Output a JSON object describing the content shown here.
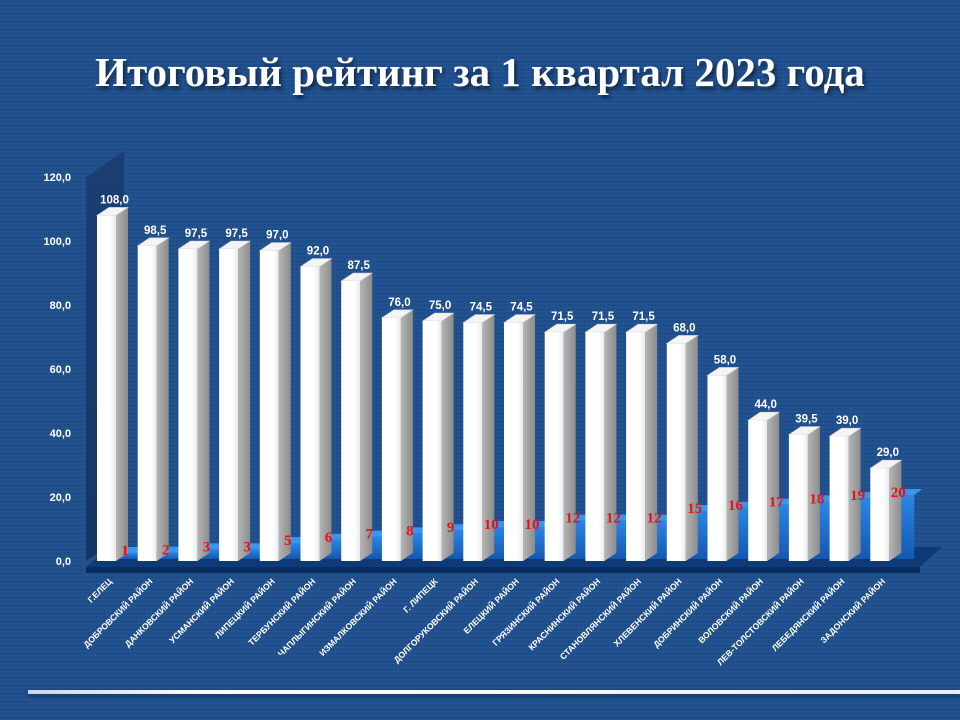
{
  "title": "Итоговый рейтинг за 1 квартал 2023 года",
  "colors": {
    "background": "#1f4f8d",
    "bar_front": "#ffffff",
    "bar_side": "#a8a8a8",
    "rank_bar": "#1f6fd0",
    "rank_text": "#e8101a",
    "value_text": "#ffffff"
  },
  "chart_data": {
    "type": "bar",
    "title": "Итоговый рейтинг за 1 квартал 2023 года",
    "ylim": [
      0,
      120
    ],
    "yticks": [
      "0,0",
      "20,0",
      "40,0",
      "60,0",
      "80,0",
      "100,0",
      "120,0"
    ],
    "grid": false,
    "categories": [
      "Г.ЕЛЕЦ",
      "ДОБРОВСКИЙ РАЙОН",
      "ДАНКОВСКИЙ РАЙОН",
      "УСМАНСКИЙ РАЙОН",
      "ЛИПЕЦКИЙ РАЙОН",
      "ТЕРБУНСКИЙ РАЙОН",
      "ЧАПЛЫГИНСКИЙ РАЙОН",
      "ИЗМАЛКОВСКИЙ РАЙОН",
      "Г. ЛИПЕЦК",
      "ДОЛГОРУКОВСКИЙ РАЙОН",
      "ЕЛЕЦКИЙ РАЙОН",
      "ГРЯЗИНСКИЙ РАЙОН",
      "КРАСНИНСКИЙ РАЙОН",
      "СТАНОВЛЯНСКИЙ РАЙОН",
      "ХЛЕВЕНСКИЙ  РАЙОН",
      "ДОБРИНСКИЙ РАЙОН",
      "ВОЛОВСКИЙ РАЙОН",
      "ЛЕВ-ТОЛСТОВСКИЙ РАЙОН",
      "ЛЕБЕДЯНСКИЙ РАЙОН",
      "ЗАДОНСКИЙ РАЙОН"
    ],
    "series": [
      {
        "values": [
          108.0,
          98.5,
          97.5,
          97.5,
          97.0,
          92.0,
          87.5,
          76.0,
          75.0,
          74.5,
          74.5,
          71.5,
          71.5,
          71.5,
          68.0,
          58.0,
          44.0,
          39.5,
          39.0,
          29.0
        ],
        "labels": [
          "108,0",
          "98,5",
          "97,5",
          "97,5",
          "97,0",
          "92,0",
          "87,5",
          "76,0",
          "75,0",
          "74,5",
          "74,5",
          "71,5",
          "71,5",
          "71,5",
          "68,0",
          "58,0",
          "44,0",
          "39,5",
          "39,0",
          "29,0"
        ]
      },
      {
        "values": [
          1,
          2,
          3,
          3,
          5,
          6,
          7,
          8,
          9,
          10,
          10,
          12,
          12,
          12,
          15,
          16,
          17,
          18,
          19,
          20
        ],
        "labels": [
          "1",
          "2",
          "3",
          "3",
          "5",
          "6",
          "7",
          "8",
          "9",
          "10",
          "10",
          "12",
          "12",
          "12",
          "15",
          "16",
          "17",
          "18",
          "19",
          "20"
        ]
      }
    ]
  }
}
